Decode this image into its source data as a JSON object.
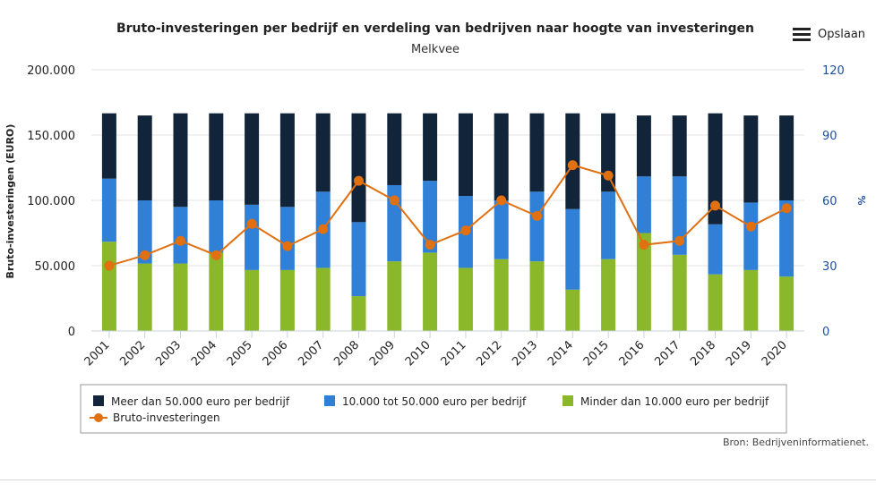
{
  "toolbar": {
    "save_label": "Opslaan",
    "menu_icon": "hamburger-menu-icon"
  },
  "source_note": "Bron: Bedrijveninformatienet.",
  "chart_data": {
    "type": "bar",
    "stacked": true,
    "title": "Bruto-investeringen per bedrijf en verdeling van bedrijven naar hoogte van investeringen",
    "subtitle": "Melkvee",
    "ylabel": "Bruto-investeringen (EURO)",
    "y2label": "%",
    "ylim": [
      0,
      200000
    ],
    "y2lim": [
      0,
      120
    ],
    "yticks": [
      "0",
      "50.000",
      "100.000",
      "150.000",
      "200.000"
    ],
    "y2ticks": [
      "0",
      "30",
      "60",
      "90",
      "120"
    ],
    "grid": true,
    "legend_position": "bottom",
    "categories": [
      "2001",
      "2002",
      "2003",
      "2004",
      "2005",
      "2006",
      "2007",
      "2008",
      "2009",
      "2010",
      "2011",
      "2012",
      "2013",
      "2014",
      "2015",
      "2016",
      "2017",
      "2018",
      "2019",
      "2020"
    ],
    "series": [
      {
        "name": "Minder dan 10.000 euro per bedrijf",
        "axis": "right",
        "color": "#8ab82a",
        "values": [
          41,
          31,
          31,
          36,
          28,
          28,
          29,
          16,
          32,
          36,
          29,
          33,
          32,
          19,
          33,
          45,
          35,
          26,
          28,
          25
        ]
      },
      {
        "name": "10.000 tot 50.000 euro per bedrijf",
        "axis": "right",
        "color": "#2f80d6",
        "values": [
          29,
          29,
          26,
          24,
          30,
          29,
          35,
          34,
          35,
          33,
          33,
          27,
          32,
          37,
          31,
          26,
          36,
          23,
          31,
          35
        ]
      },
      {
        "name": "Meer dan 50.000 euro per bedrijf",
        "axis": "right",
        "color": "#12243a",
        "values": [
          30,
          39,
          43,
          40,
          42,
          43,
          36,
          50,
          33,
          31,
          38,
          40,
          36,
          44,
          36,
          28,
          28,
          51,
          40,
          39
        ]
      },
      {
        "name": "Bruto-investeringen",
        "type": "line",
        "axis": "left",
        "color": "#e07010",
        "values": [
          50000,
          58000,
          69000,
          58000,
          82000,
          65000,
          78000,
          115000,
          100000,
          66000,
          77000,
          100000,
          88000,
          127000,
          119000,
          66000,
          69000,
          96000,
          80000,
          94000
        ]
      }
    ]
  }
}
